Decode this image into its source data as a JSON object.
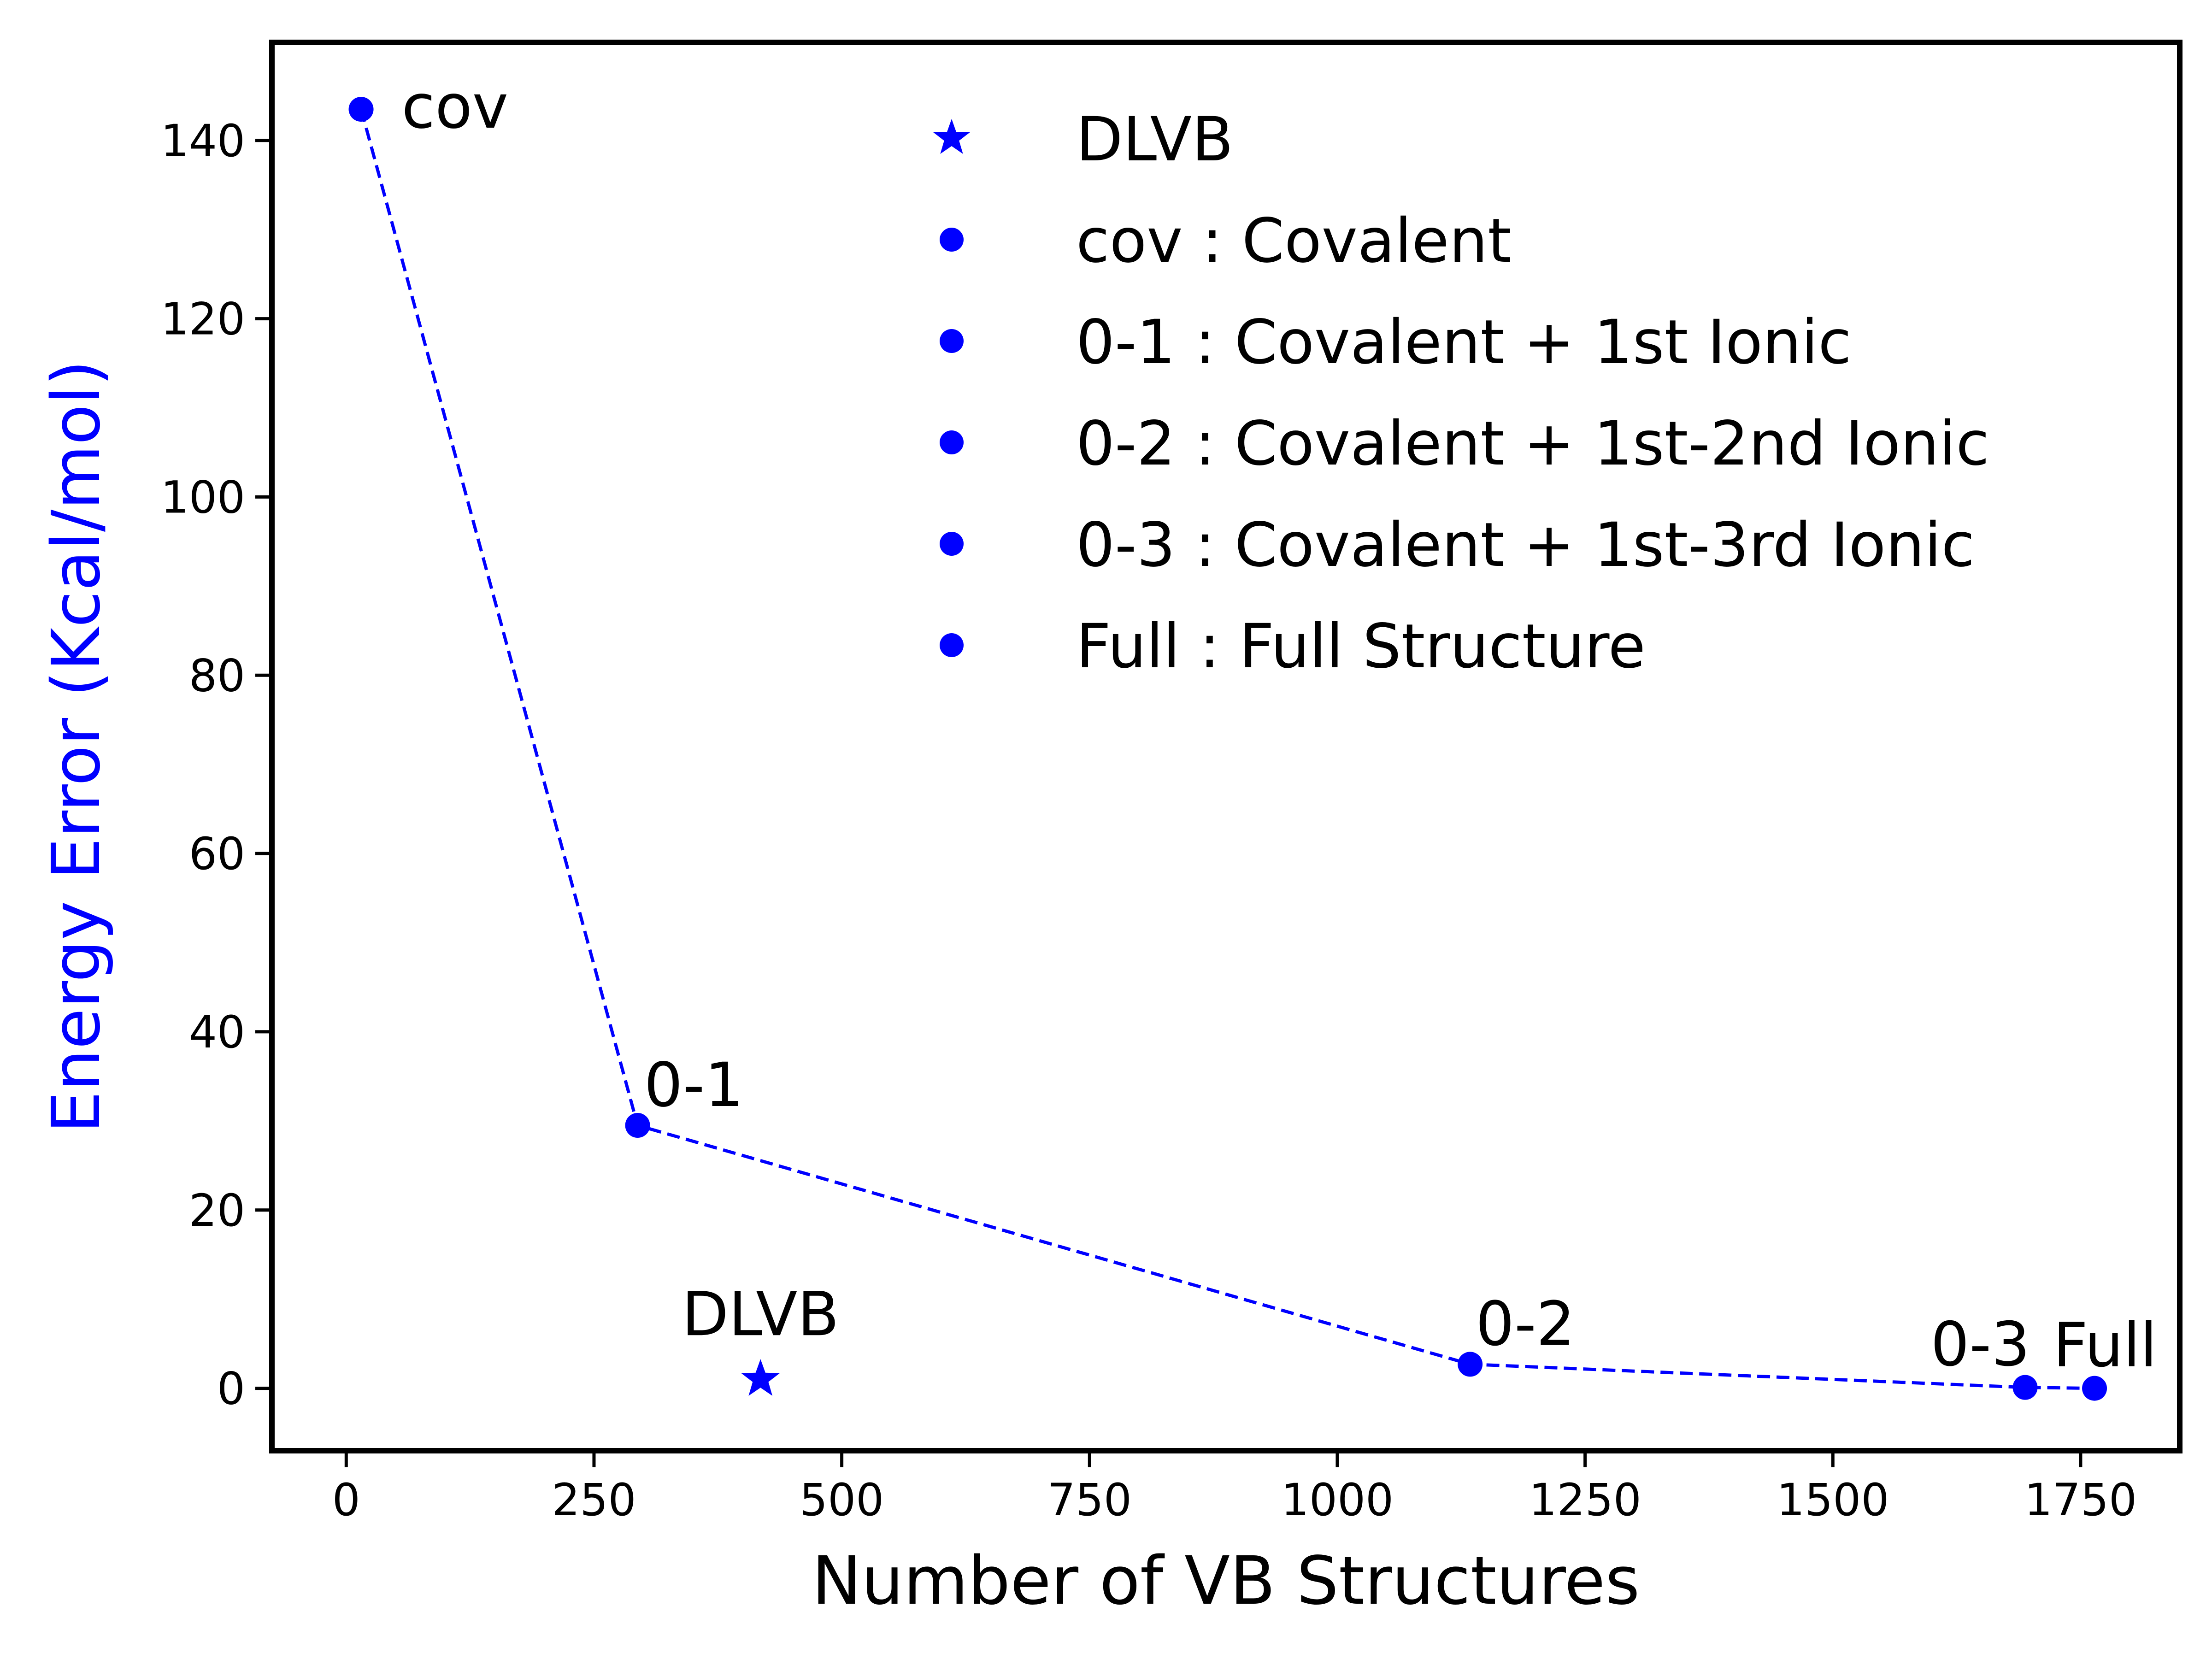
{
  "chart_data": {
    "type": "scatter",
    "xlabel": "Number of VB Structures",
    "ylabel": "Energy Error (Kcal/mol)",
    "xlim": [
      -75,
      1850
    ],
    "ylim": [
      -7,
      151
    ],
    "xticks": [
      0,
      250,
      500,
      750,
      1000,
      1250,
      1500,
      1750
    ],
    "yticks": [
      0,
      20,
      40,
      60,
      80,
      100,
      120,
      140
    ],
    "grid": false,
    "legend_position": "top-right",
    "series": [
      {
        "name": "cov",
        "legend_label": "cov : Covalent",
        "marker": "circle",
        "x": [
          15
        ],
        "y": [
          143.5
        ],
        "point_label": "cov"
      },
      {
        "name": "0-1",
        "legend_label": "0-1 : Covalent + 1st Ionic",
        "marker": "circle",
        "x": [
          294
        ],
        "y": [
          29.5
        ],
        "point_label": "0-1"
      },
      {
        "name": "0-2",
        "legend_label": "0-2 : Covalent + 1st-2nd Ionic",
        "marker": "circle",
        "x": [
          1134
        ],
        "y": [
          2.7
        ],
        "point_label": "0-2"
      },
      {
        "name": "0-3",
        "legend_label": "0-3 : Covalent + 1st-3rd Ionic",
        "marker": "circle",
        "x": [
          1694
        ],
        "y": [
          0.1
        ],
        "point_label": "0-3"
      },
      {
        "name": "Full",
        "legend_label": "Full : Full Structure",
        "marker": "circle",
        "x": [
          1764
        ],
        "y": [
          0.0
        ],
        "point_label": "Full"
      },
      {
        "name": "DLVB",
        "legend_label": "DLVB",
        "marker": "star",
        "x": [
          418
        ],
        "y": [
          1.0
        ],
        "point_label": "DLVB"
      }
    ],
    "connecting_line": {
      "style": "dashed",
      "x": [
        15,
        294,
        1134,
        1694,
        1764
      ],
      "y": [
        143.5,
        29.5,
        2.7,
        0.1,
        0.0
      ]
    },
    "legend_order": [
      "DLVB",
      "cov",
      "0-1",
      "0-2",
      "0-3",
      "Full"
    ],
    "colors": {
      "series": "#0000ff",
      "ylabel": "#0000ff",
      "xlabel": "#000000",
      "axes": "#000000"
    }
  }
}
